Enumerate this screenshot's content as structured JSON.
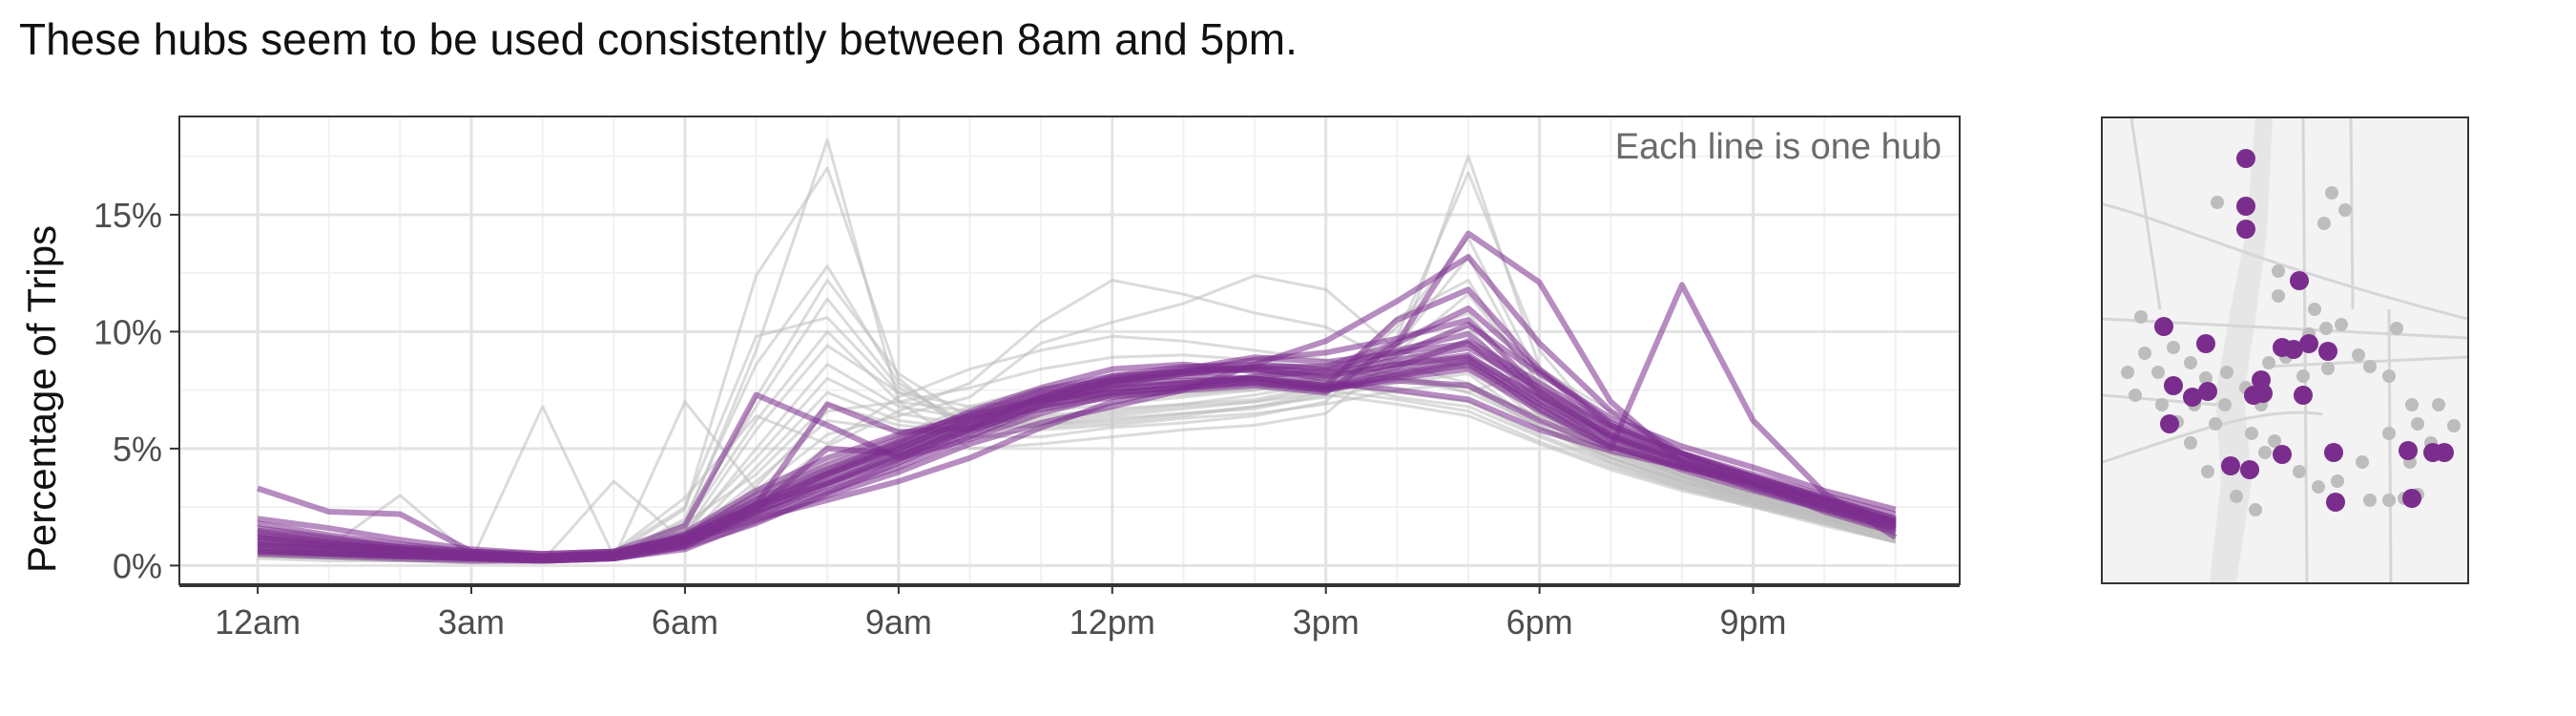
{
  "title": "These hubs seem to be used consistently between 8am and 5pm.",
  "chart_data": {
    "type": "line",
    "title": "These hubs seem to be used consistently between 8am and 5pm.",
    "xlabel": "",
    "ylabel": "Percentage of Trips",
    "annotation": "Each line is one hub",
    "x": [
      0,
      1,
      2,
      3,
      4,
      5,
      6,
      7,
      8,
      9,
      10,
      11,
      12,
      13,
      14,
      15,
      16,
      17,
      18,
      19,
      20,
      21,
      22,
      23
    ],
    "xlim": [
      -1.1,
      23.9
    ],
    "ylim": [
      -0.8,
      19.2
    ],
    "x_ticks": [
      0,
      3,
      6,
      9,
      12,
      15,
      18,
      21
    ],
    "x_tick_labels": [
      "12am",
      "3am",
      "6am",
      "9am",
      "12pm",
      "3pm",
      "6pm",
      "9pm"
    ],
    "y_ticks": [
      0,
      5,
      10,
      15
    ],
    "y_tick_labels": [
      "0%",
      "5%",
      "10%",
      "15%"
    ],
    "grid": true,
    "colors": {
      "highlight": "#7B2D8E",
      "background": "#bdbdbd"
    },
    "series": [
      {
        "group": "consistent",
        "values": [
          1.5,
          1.1,
          0.8,
          0.5,
          0.4,
          0.6,
          1.2,
          2.6,
          3.5,
          4.6,
          6.0,
          7.2,
          7.8,
          8.2,
          8.4,
          8.1,
          8.6,
          8.9,
          7.2,
          5.6,
          4.6,
          3.8,
          2.9,
          2.0
        ]
      },
      {
        "group": "consistent",
        "values": [
          1.0,
          0.8,
          0.6,
          0.4,
          0.3,
          0.4,
          0.9,
          2.2,
          3.2,
          4.2,
          5.5,
          6.8,
          7.5,
          7.8,
          8.0,
          7.7,
          8.5,
          9.6,
          7.8,
          6.0,
          4.8,
          3.9,
          3.0,
          2.2
        ]
      },
      {
        "group": "consistent",
        "values": [
          1.2,
          0.9,
          0.7,
          0.5,
          0.4,
          0.5,
          1.4,
          3.2,
          4.6,
          5.6,
          6.4,
          7.1,
          7.4,
          7.6,
          7.8,
          7.5,
          8.0,
          8.4,
          6.6,
          5.1,
          4.2,
          3.4,
          2.5,
          1.6
        ]
      },
      {
        "group": "consistent",
        "values": [
          0.8,
          0.6,
          0.5,
          0.4,
          0.3,
          0.4,
          1.0,
          2.0,
          2.8,
          3.6,
          4.6,
          5.9,
          7.0,
          7.6,
          8.1,
          8.3,
          9.0,
          10.3,
          8.2,
          6.3,
          5.1,
          4.2,
          3.2,
          2.4
        ]
      },
      {
        "group": "consistent",
        "values": [
          0.6,
          0.5,
          0.4,
          0.3,
          0.2,
          0.3,
          0.8,
          2.4,
          5.0,
          4.8,
          5.9,
          7.0,
          7.7,
          7.9,
          8.0,
          7.6,
          8.1,
          8.6,
          6.9,
          5.4,
          4.4,
          3.6,
          2.8,
          1.9
        ]
      },
      {
        "group": "consistent",
        "values": [
          2.0,
          1.6,
          1.1,
          0.7,
          0.5,
          0.6,
          1.2,
          2.5,
          3.9,
          5.1,
          6.2,
          7.0,
          7.9,
          8.3,
          8.8,
          9.1,
          9.7,
          10.5,
          7.5,
          5.8,
          4.5,
          3.5,
          2.6,
          1.7
        ]
      },
      {
        "group": "consistent",
        "values": [
          0.5,
          0.4,
          0.3,
          0.2,
          0.2,
          0.3,
          0.7,
          1.9,
          3.0,
          4.0,
          5.2,
          6.1,
          6.8,
          7.5,
          8.6,
          9.6,
          11.3,
          13.2,
          9.5,
          6.6,
          4.8,
          3.5,
          2.3,
          1.4
        ]
      },
      {
        "group": "consistent",
        "values": [
          1.4,
          1.0,
          0.7,
          0.5,
          0.4,
          0.5,
          1.3,
          2.8,
          4.1,
          5.3,
          6.6,
          7.6,
          8.4,
          8.6,
          8.3,
          7.8,
          7.5,
          7.1,
          5.8,
          4.9,
          4.2,
          3.6,
          2.8,
          1.8
        ]
      },
      {
        "group": "consistent",
        "values": [
          0.9,
          0.7,
          0.5,
          0.3,
          0.3,
          0.4,
          1.0,
          2.1,
          3.4,
          4.5,
          5.8,
          7.2,
          8.1,
          8.5,
          8.6,
          8.4,
          9.2,
          9.9,
          7.4,
          5.5,
          4.3,
          3.3,
          2.4,
          1.5
        ]
      },
      {
        "group": "consistent",
        "values": [
          1.8,
          1.3,
          0.9,
          0.6,
          0.5,
          0.6,
          1.7,
          7.3,
          6.0,
          4.6,
          5.4,
          6.5,
          7.3,
          7.7,
          7.9,
          7.6,
          8.3,
          8.8,
          6.9,
          5.2,
          4.1,
          3.2,
          2.4,
          1.6
        ]
      },
      {
        "group": "consistent",
        "values": [
          0.7,
          0.5,
          0.4,
          0.3,
          0.2,
          0.3,
          0.9,
          2.6,
          6.9,
          5.7,
          5.9,
          6.8,
          7.4,
          7.6,
          7.8,
          7.5,
          8.2,
          8.7,
          6.7,
          5.1,
          4.2,
          3.5,
          2.6,
          1.7
        ]
      },
      {
        "group": "consistent",
        "values": [
          3.3,
          2.3,
          2.2,
          0.6,
          0.4,
          0.5,
          1.1,
          2.3,
          3.6,
          4.7,
          5.8,
          6.7,
          7.2,
          7.5,
          7.7,
          7.4,
          9.5,
          14.2,
          12.1,
          7.0,
          4.4,
          3.5,
          2.6,
          1.8
        ]
      },
      {
        "group": "consistent",
        "values": [
          1.1,
          0.8,
          0.6,
          0.4,
          0.3,
          0.4,
          1.1,
          2.4,
          3.8,
          5.0,
          6.3,
          7.3,
          7.9,
          8.1,
          8.0,
          7.6,
          7.9,
          7.7,
          6.2,
          5.0,
          12.0,
          6.2,
          3.1,
          1.2
        ]
      },
      {
        "group": "consistent",
        "values": [
          1.3,
          1.0,
          0.7,
          0.5,
          0.4,
          0.5,
          1.3,
          3.0,
          4.3,
          5.4,
          6.5,
          7.5,
          8.1,
          8.3,
          8.5,
          8.2,
          8.8,
          9.3,
          7.6,
          5.9,
          4.7,
          3.7,
          2.8,
          1.9
        ]
      },
      {
        "group": "consistent",
        "values": [
          0.9,
          0.7,
          0.5,
          0.4,
          0.3,
          0.4,
          1.0,
          2.3,
          3.5,
          4.8,
          6.1,
          7.1,
          7.6,
          7.8,
          8.0,
          7.7,
          10.5,
          11.8,
          8.4,
          6.1,
          4.8,
          3.8,
          2.8,
          1.9
        ]
      },
      {
        "group": "consistent",
        "values": [
          1.6,
          1.2,
          0.8,
          0.6,
          0.4,
          0.5,
          1.2,
          2.7,
          4.0,
          5.2,
          6.4,
          7.4,
          8.0,
          8.4,
          8.9,
          8.7,
          9.1,
          9.5,
          7.3,
          5.6,
          4.4,
          3.4,
          2.5,
          1.6
        ]
      },
      {
        "group": "consistent",
        "values": [
          0.6,
          0.5,
          0.4,
          0.3,
          0.2,
          0.3,
          0.8,
          1.8,
          3.1,
          4.4,
          5.7,
          6.9,
          7.7,
          8.2,
          8.5,
          8.5,
          9.5,
          11.0,
          8.3,
          6.0,
          4.8,
          3.8,
          2.9,
          2.0
        ]
      },
      {
        "group": "consistent",
        "values": [
          1.2,
          0.9,
          0.7,
          0.5,
          0.4,
          0.5,
          1.2,
          2.6,
          3.9,
          5.0,
          6.2,
          7.2,
          7.9,
          8.3,
          8.4,
          8.0,
          8.6,
          9.0,
          7.1,
          5.5,
          4.5,
          3.6,
          2.7,
          1.8
        ]
      },
      {
        "group": "background",
        "values": [
          0.6,
          0.4,
          0.3,
          0.2,
          0.2,
          0.4,
          1.8,
          9.2,
          18.2,
          7.0,
          5.0,
          5.2,
          5.5,
          5.8,
          6.0,
          6.5,
          9.0,
          17.5,
          8.5,
          5.2,
          3.8,
          2.8,
          2.0,
          1.2
        ]
      },
      {
        "group": "background",
        "values": [
          0.5,
          0.3,
          0.2,
          0.2,
          0.2,
          0.5,
          2.4,
          12.4,
          17.0,
          8.0,
          5.5,
          5.5,
          5.9,
          6.1,
          6.4,
          7.0,
          9.8,
          16.8,
          9.2,
          5.6,
          4.0,
          3.0,
          2.1,
          1.3
        ]
      },
      {
        "group": "background",
        "values": [
          0.7,
          0.5,
          0.3,
          0.2,
          0.2,
          0.4,
          2.0,
          8.6,
          12.8,
          7.8,
          5.9,
          6.2,
          6.5,
          6.8,
          7.0,
          7.6,
          10.2,
          14.0,
          8.0,
          5.4,
          4.2,
          3.2,
          2.3,
          1.4
        ]
      },
      {
        "group": "background",
        "values": [
          0.4,
          0.3,
          0.2,
          0.2,
          0.2,
          0.3,
          1.6,
          7.2,
          12.2,
          8.2,
          6.3,
          6.0,
          6.2,
          6.5,
          6.7,
          7.3,
          9.4,
          13.2,
          7.6,
          5.0,
          3.9,
          3.0,
          2.2,
          1.3
        ]
      },
      {
        "group": "background",
        "values": [
          0.6,
          0.4,
          0.3,
          0.2,
          0.2,
          0.4,
          1.9,
          6.8,
          11.4,
          7.6,
          6.1,
          6.4,
          6.7,
          6.9,
          7.1,
          7.7,
          10.6,
          12.2,
          7.3,
          5.0,
          3.8,
          2.9,
          2.1,
          1.3
        ]
      },
      {
        "group": "background",
        "values": [
          0.5,
          0.4,
          0.3,
          0.2,
          0.3,
          0.6,
          2.5,
          9.8,
          10.6,
          7.4,
          6.0,
          5.9,
          6.1,
          6.4,
          6.8,
          7.4,
          9.1,
          11.6,
          7.8,
          5.3,
          4.1,
          3.1,
          2.2,
          1.4
        ]
      },
      {
        "group": "background",
        "values": [
          0.6,
          0.4,
          0.3,
          0.2,
          0.2,
          0.4,
          1.7,
          6.2,
          10.0,
          7.0,
          6.6,
          7.0,
          7.3,
          7.4,
          7.5,
          8.0,
          9.6,
          10.8,
          7.2,
          5.1,
          3.9,
          3.0,
          2.2,
          1.4
        ]
      },
      {
        "group": "background",
        "values": [
          0.4,
          0.3,
          0.2,
          0.2,
          0.2,
          0.3,
          1.4,
          5.8,
          9.4,
          7.4,
          6.8,
          7.1,
          7.2,
          7.3,
          7.6,
          8.1,
          9.2,
          10.2,
          6.9,
          4.9,
          3.8,
          2.9,
          2.1,
          1.3
        ]
      },
      {
        "group": "background",
        "values": [
          0.9,
          0.6,
          0.5,
          0.3,
          0.3,
          0.4,
          1.3,
          5.0,
          8.6,
          6.8,
          6.3,
          6.6,
          6.9,
          7.2,
          7.5,
          8.0,
          8.8,
          9.6,
          6.6,
          4.8,
          3.7,
          2.8,
          2.0,
          1.2
        ]
      },
      {
        "group": "background",
        "values": [
          0.5,
          0.3,
          0.2,
          0.2,
          0.2,
          0.4,
          1.5,
          4.6,
          8.0,
          6.5,
          6.0,
          6.3,
          6.6,
          6.9,
          7.3,
          7.8,
          8.4,
          9.0,
          6.4,
          4.7,
          3.6,
          2.7,
          2.0,
          1.2
        ]
      },
      {
        "group": "background",
        "values": [
          0.8,
          0.6,
          0.4,
          0.3,
          0.2,
          0.3,
          1.1,
          4.2,
          7.4,
          6.2,
          5.8,
          6.1,
          6.4,
          6.7,
          7.0,
          7.4,
          8.1,
          8.6,
          6.2,
          4.6,
          3.6,
          2.8,
          2.0,
          1.2
        ]
      },
      {
        "group": "background",
        "values": [
          0.3,
          0.2,
          0.2,
          0.1,
          0.2,
          0.5,
          1.8,
          3.9,
          6.9,
          6.0,
          5.7,
          6.0,
          6.3,
          6.5,
          6.8,
          7.2,
          7.8,
          8.2,
          6.0,
          4.5,
          3.5,
          2.7,
          1.9,
          1.1
        ]
      },
      {
        "group": "background",
        "values": [
          0.7,
          0.5,
          0.4,
          0.3,
          0.3,
          0.4,
          1.2,
          3.6,
          6.2,
          5.8,
          5.5,
          5.8,
          6.0,
          6.3,
          6.5,
          6.9,
          7.5,
          7.8,
          5.9,
          4.4,
          3.4,
          2.6,
          1.9,
          1.1
        ]
      },
      {
        "group": "background",
        "values": [
          1.0,
          0.7,
          0.5,
          0.3,
          0.3,
          0.4,
          1.0,
          3.2,
          5.6,
          6.4,
          7.2,
          9.5,
          10.4,
          11.2,
          12.4,
          11.8,
          9.2,
          8.4,
          6.6,
          5.0,
          3.9,
          3.0,
          2.2,
          1.3
        ]
      },
      {
        "group": "background",
        "values": [
          0.6,
          0.4,
          0.3,
          0.2,
          0.2,
          0.3,
          0.9,
          2.8,
          5.1,
          6.6,
          7.8,
          10.4,
          12.2,
          11.6,
          10.8,
          10.2,
          8.6,
          7.8,
          6.2,
          4.8,
          3.7,
          2.9,
          2.1,
          1.2
        ]
      },
      {
        "group": "background",
        "values": [
          0.4,
          0.3,
          0.2,
          0.2,
          0.3,
          0.6,
          2.9,
          6.4,
          5.2,
          7.2,
          8.4,
          9.2,
          9.8,
          9.6,
          9.2,
          8.8,
          8.1,
          7.6,
          5.9,
          4.6,
          3.6,
          2.8,
          2.0,
          1.2
        ]
      },
      {
        "group": "background",
        "values": [
          0.7,
          0.5,
          0.4,
          0.3,
          0.2,
          0.3,
          1.0,
          3.4,
          6.6,
          7.0,
          7.6,
          8.4,
          8.9,
          9.0,
          8.8,
          8.4,
          8.0,
          7.4,
          6.0,
          4.6,
          3.5,
          2.7,
          1.9,
          1.1
        ]
      },
      {
        "group": "background",
        "values": [
          0.9,
          0.8,
          3.0,
          0.4,
          0.3,
          0.4,
          1.1,
          3.0,
          4.4,
          5.6,
          6.8,
          7.6,
          8.0,
          8.2,
          8.4,
          8.0,
          7.2,
          6.8,
          5.5,
          4.3,
          3.3,
          2.6,
          1.8,
          1.0
        ]
      },
      {
        "group": "background",
        "values": [
          0.5,
          0.4,
          0.3,
          0.2,
          6.8,
          0.4,
          1.2,
          2.9,
          4.1,
          5.3,
          6.4,
          7.2,
          7.6,
          7.9,
          8.1,
          7.8,
          7.4,
          7.0,
          5.6,
          4.4,
          3.4,
          2.6,
          1.8,
          1.0
        ]
      },
      {
        "group": "background",
        "values": [
          0.6,
          0.4,
          0.3,
          0.2,
          0.2,
          3.6,
          1.0,
          2.7,
          4.0,
          5.2,
          6.3,
          7.0,
          7.5,
          7.7,
          7.8,
          7.5,
          7.1,
          6.6,
          5.3,
          4.2,
          3.3,
          2.5,
          1.8,
          1.0
        ]
      },
      {
        "group": "background",
        "values": [
          0.8,
          0.6,
          0.4,
          0.3,
          0.2,
          0.3,
          7.0,
          3.2,
          4.2,
          5.0,
          6.0,
          6.8,
          7.2,
          7.4,
          7.6,
          7.3,
          6.9,
          6.4,
          5.2,
          4.1,
          3.2,
          2.5,
          1.7,
          1.0
        ]
      },
      {
        "group": "background",
        "values": [
          0.4,
          0.3,
          0.2,
          0.2,
          0.2,
          0.3,
          0.8,
          2.2,
          3.6,
          4.8,
          6.0,
          7.0,
          7.8,
          8.2,
          8.4,
          8.6,
          8.2,
          7.4,
          8.4,
          6.6,
          4.5,
          3.2,
          2.2,
          1.3
        ]
      },
      {
        "group": "background",
        "values": [
          0.6,
          0.5,
          0.4,
          0.3,
          0.3,
          0.4,
          0.9,
          2.4,
          3.8,
          5.0,
          6.2,
          7.2,
          7.9,
          8.3,
          8.5,
          8.4,
          8.0,
          7.6,
          6.4,
          5.0,
          3.8,
          2.9,
          2.0,
          1.2
        ]
      }
    ]
  }
}
